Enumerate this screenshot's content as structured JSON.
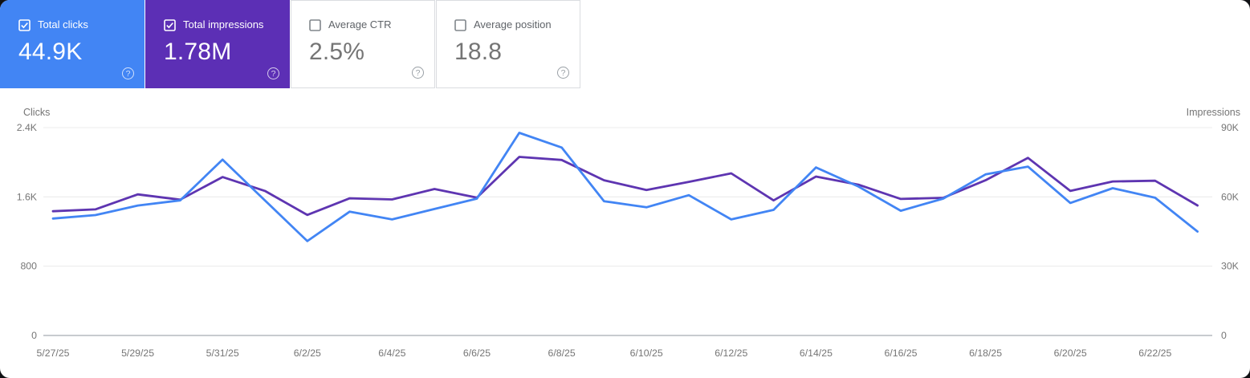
{
  "cards": [
    {
      "label": "Total clicks",
      "value": "44.9K",
      "checked": true,
      "bg": "#4285f4",
      "text_color": "#ffffff"
    },
    {
      "label": "Total impressions",
      "value": "1.78M",
      "checked": true,
      "bg": "#5c2fb5",
      "text_color": "#ffffff"
    },
    {
      "label": "Average CTR",
      "value": "2.5%",
      "checked": false,
      "bg": "#ffffff",
      "text_color": "#757575"
    },
    {
      "label": "Average position",
      "value": "18.8",
      "checked": false,
      "bg": "#ffffff",
      "text_color": "#757575"
    }
  ],
  "help_icon_glyph": "?",
  "chart_data": {
    "type": "line",
    "grid": true,
    "legend": "none",
    "x_label_interval": 2,
    "dates": [
      "5/27/25",
      "5/28/25",
      "5/29/25",
      "5/30/25",
      "5/31/25",
      "6/1/25",
      "6/2/25",
      "6/3/25",
      "6/4/25",
      "6/5/25",
      "6/6/25",
      "6/7/25",
      "6/8/25",
      "6/9/25",
      "6/10/25",
      "6/11/25",
      "6/12/25",
      "6/13/25",
      "6/14/25",
      "6/15/25",
      "6/16/25",
      "6/17/25",
      "6/18/25",
      "6/19/25",
      "6/20/25",
      "6/21/25",
      "6/22/25",
      "6/23/25"
    ],
    "series": [
      {
        "name": "Clicks",
        "axis": "left",
        "color": "#4285f4",
        "values": [
          1350,
          1390,
          1500,
          1560,
          2030,
          1560,
          1090,
          1430,
          1340,
          1460,
          1580,
          2340,
          2170,
          1550,
          1480,
          1620,
          1340,
          1450,
          1940,
          1720,
          1440,
          1580,
          1860,
          1950,
          1530,
          1700,
          1590,
          1200
        ]
      },
      {
        "name": "Impressions",
        "axis": "right",
        "color": "#5e35b1",
        "values": [
          53800,
          54600,
          61100,
          58800,
          68600,
          62600,
          52200,
          59400,
          58900,
          63400,
          59700,
          77300,
          76000,
          67200,
          63000,
          66500,
          70200,
          58500,
          68800,
          65300,
          59100,
          59600,
          67200,
          76900,
          62600,
          66700,
          67000,
          56300
        ]
      }
    ],
    "y_left": {
      "title": "Clicks",
      "max": 2400,
      "ticks": [
        {
          "value": 0,
          "label": "0"
        },
        {
          "value": 800,
          "label": "800"
        },
        {
          "value": 1600,
          "label": "1.6K"
        },
        {
          "value": 2400,
          "label": "2.4K"
        }
      ]
    },
    "y_right": {
      "title": "Impressions",
      "max": 90000,
      "ticks": [
        {
          "value": 0,
          "label": "0"
        },
        {
          "value": 30000,
          "label": "30K"
        },
        {
          "value": 60000,
          "label": "60K"
        },
        {
          "value": 90000,
          "label": "90K"
        }
      ]
    },
    "colors": {
      "grid_line": "#ececec",
      "baseline": "#b6babf",
      "tick_text": "#757575"
    }
  }
}
